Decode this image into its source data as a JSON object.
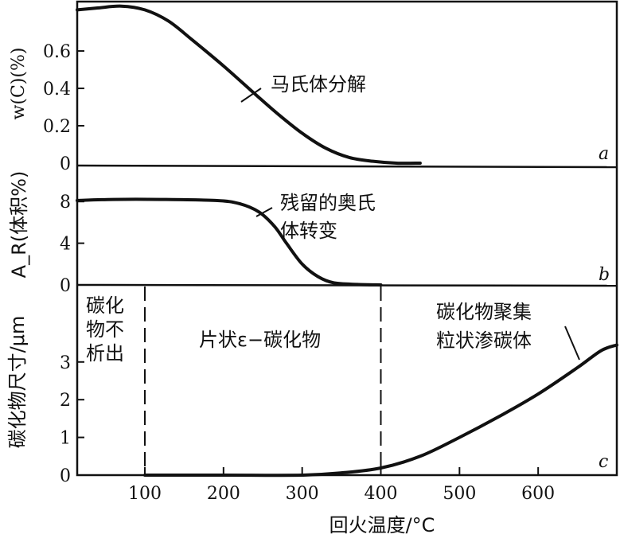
{
  "chart_data": [
    {
      "type": "line",
      "panel_label": "a",
      "ylabel": "w(C)(%)",
      "xlim": [
        14,
        700
      ],
      "ylim": [
        0,
        0.86
      ],
      "yticks": [
        "0",
        "0.2",
        "0.4",
        "0.6"
      ],
      "ytick_values": [
        0,
        0.2,
        0.4,
        0.6
      ],
      "annotation": "马氏体分解",
      "series": [
        {
          "name": "马氏体分解",
          "x": [
            14,
            40,
            70,
            100,
            130,
            160,
            200,
            240,
            270,
            300,
            330,
            360,
            390,
            420,
            450
          ],
          "y": [
            0.82,
            0.83,
            0.84,
            0.82,
            0.76,
            0.66,
            0.52,
            0.37,
            0.26,
            0.16,
            0.08,
            0.03,
            0.01,
            0.0,
            0.0
          ]
        }
      ]
    },
    {
      "type": "line",
      "panel_label": "b",
      "ylabel": "A_R(体积%)",
      "ylabel_main": "A",
      "ylabel_sub": "R",
      "ylabel_rest": "(体积%)",
      "xlim": [
        14,
        700
      ],
      "ylim": [
        0,
        11.3
      ],
      "yticks": [
        "0",
        "4",
        "8"
      ],
      "ytick_values": [
        0,
        4,
        8
      ],
      "annotation_lines": [
        "残留的奥氏",
        "体转变"
      ],
      "series": [
        {
          "name": "残留的奥氏体转变",
          "x": [
            14,
            60,
            120,
            190,
            220,
            245,
            265,
            280,
            300,
            320,
            340,
            370,
            400
          ],
          "y": [
            8.1,
            8.2,
            8.2,
            8.1,
            7.8,
            7.0,
            5.6,
            4.0,
            2.0,
            0.8,
            0.2,
            0.05,
            0.0
          ]
        }
      ]
    },
    {
      "type": "line",
      "panel_label": "c",
      "ylabel": "碳化物尺寸/μm",
      "xlabel": "回火温度/°C",
      "xlim": [
        14,
        700
      ],
      "ylim": [
        0,
        5
      ],
      "xticks": [
        "100",
        "200",
        "300",
        "400",
        "500",
        "600"
      ],
      "xtick_values": [
        100,
        200,
        300,
        400,
        500,
        600
      ],
      "yticks": [
        "0",
        "1",
        "2",
        "3"
      ],
      "ytick_values": [
        0,
        1,
        2,
        3
      ],
      "dashed_lines_x": [
        100,
        400
      ],
      "region_labels": {
        "left_lines": [
          "碳化",
          "物不",
          "析出"
        ],
        "middle": "片状ε−碳化物"
      },
      "annotation_lines": [
        "碳化物聚集",
        "粒状渗碳体"
      ],
      "series": [
        {
          "name": "碳化物尺寸",
          "x": [
            100,
            200,
            300,
            350,
            400,
            450,
            500,
            550,
            600,
            650,
            680,
            700
          ],
          "y": [
            0.0,
            0.0,
            0.0,
            0.06,
            0.19,
            0.5,
            1.0,
            1.55,
            2.15,
            2.85,
            3.3,
            3.45
          ]
        }
      ]
    }
  ]
}
